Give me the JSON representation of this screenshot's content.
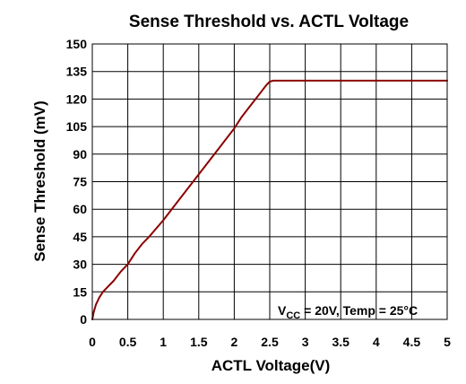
{
  "chart_data": {
    "type": "line",
    "title": "Sense Threshold vs. ACTL Voltage",
    "xlabel": "ACTL Voltage(V)",
    "ylabel": "Sense Threshold (mV)",
    "xlim": [
      0,
      5
    ],
    "ylim": [
      0,
      150
    ],
    "xticks": [
      0,
      0.5,
      1,
      1.5,
      2,
      2.5,
      3,
      3.5,
      4,
      4.5,
      5
    ],
    "xtick_labels": [
      "0",
      "0.5",
      "1",
      "1.5",
      "2",
      "2.5",
      "3",
      "3.5",
      "4",
      "4.5",
      "5"
    ],
    "yticks": [
      0,
      15,
      30,
      45,
      60,
      75,
      90,
      105,
      120,
      135,
      150
    ],
    "ytick_labels": [
      "0",
      "15",
      "30",
      "45",
      "60",
      "75",
      "90",
      "105",
      "120",
      "135",
      "150"
    ],
    "grid": true,
    "line_color": "#8b0000",
    "annotation": {
      "prefix": "V",
      "subscript": "CC",
      "suffix": " = 20V, Temp = 25°C"
    },
    "series": [
      {
        "x": [
          0,
          0.02,
          0.05,
          0.1,
          0.15,
          0.2,
          0.3,
          0.4,
          0.5,
          0.6,
          0.7,
          0.8,
          1.0,
          1.2,
          1.4,
          1.6,
          1.8,
          2.0,
          2.1,
          2.2,
          2.3,
          2.4,
          2.45,
          2.5,
          2.55,
          2.6,
          3.0,
          3.5,
          4.0,
          4.5,
          5.0
        ],
        "y": [
          0,
          4,
          8,
          12,
          15,
          17,
          21,
          26,
          30,
          36,
          41,
          45,
          54,
          64,
          74,
          84,
          94,
          104,
          110,
          115,
          120,
          125,
          127.5,
          129.5,
          130,
          130,
          130,
          130,
          130,
          130,
          130
        ]
      }
    ]
  }
}
